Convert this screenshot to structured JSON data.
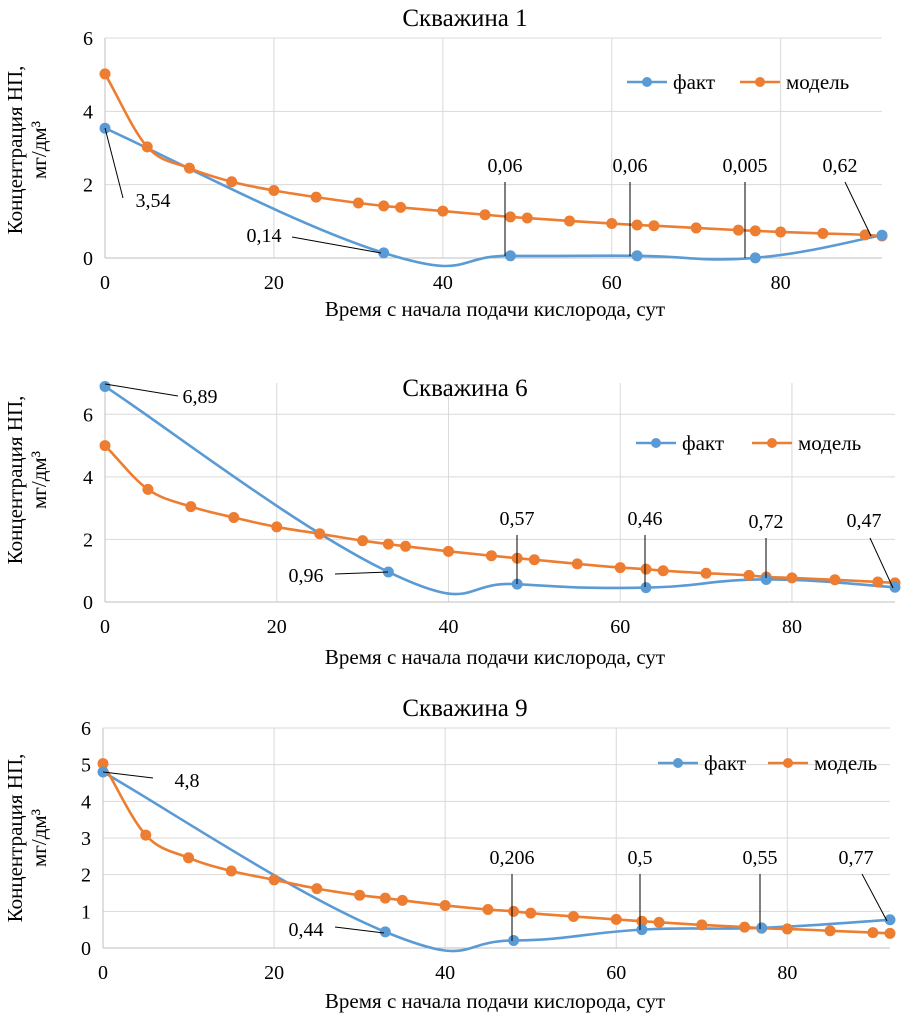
{
  "colors": {
    "fact": "#5b9bd5",
    "model": "#ed7d31",
    "grid": "#d9d9d9"
  },
  "chart_data": [
    {
      "type": "line",
      "title": "Скважина 1",
      "xlabel": "Время с начала подачи кислорода, сут",
      "ylabel_line1": "Концентрация НП,",
      "ylabel_line2": "мг/дм³",
      "xlim": [
        0,
        92
      ],
      "ylim": [
        0,
        6
      ],
      "xticks": [
        0,
        20,
        40,
        60,
        80
      ],
      "yticks": [
        0,
        2,
        4,
        6
      ],
      "grid": true,
      "legend_position": "top-right",
      "series": [
        {
          "name": "факт",
          "x": [
            0,
            33,
            48,
            63,
            77,
            92
          ],
          "y": [
            3.54,
            0.14,
            0.06,
            0.06,
            0.005,
            0.62
          ]
        },
        {
          "name": "модель",
          "x": [
            0,
            5,
            10,
            15,
            20,
            25,
            30,
            33,
            35,
            40,
            45,
            48,
            50,
            55,
            60,
            63,
            65,
            70,
            75,
            77,
            80,
            85,
            90,
            92
          ],
          "y": [
            5.02,
            3.03,
            2.45,
            2.08,
            1.84,
            1.66,
            1.5,
            1.42,
            1.38,
            1.28,
            1.18,
            1.12,
            1.09,
            1.01,
            0.94,
            0.9,
            0.88,
            0.82,
            0.76,
            0.74,
            0.71,
            0.67,
            0.63,
            0.6
          ]
        }
      ],
      "annotations": [
        {
          "text": "3,54",
          "x": 0,
          "y": 3.54
        },
        {
          "text": "0,14",
          "x": 33,
          "y": 0.14
        },
        {
          "text": "0,06",
          "x": 48,
          "y": 0.06
        },
        {
          "text": "0,06",
          "x": 63,
          "y": 0.06
        },
        {
          "text": "0,005",
          "x": 77,
          "y": 0.005
        },
        {
          "text": "0,62",
          "x": 92,
          "y": 0.62
        }
      ]
    },
    {
      "type": "line",
      "title": "Скважина 6",
      "xlabel": "Время с начала подачи кислорода, сут",
      "ylabel_line1": "Концентрация НП,",
      "ylabel_line2": "мг/дм³",
      "xlim": [
        0,
        92
      ],
      "ylim": [
        0,
        7
      ],
      "xticks": [
        0,
        20,
        40,
        60,
        80
      ],
      "yticks": [
        0,
        2,
        4,
        6
      ],
      "grid": true,
      "legend_position": "top-right",
      "series": [
        {
          "name": "факт",
          "x": [
            0,
            33,
            48,
            63,
            77,
            92
          ],
          "y": [
            6.89,
            0.96,
            0.57,
            0.46,
            0.72,
            0.47
          ]
        },
        {
          "name": "модель",
          "x": [
            0,
            5,
            10,
            15,
            20,
            25,
            30,
            33,
            35,
            40,
            45,
            48,
            50,
            55,
            60,
            63,
            65,
            70,
            75,
            77,
            80,
            85,
            90,
            92
          ],
          "y": [
            5.0,
            3.6,
            3.05,
            2.7,
            2.4,
            2.18,
            1.96,
            1.85,
            1.78,
            1.62,
            1.48,
            1.4,
            1.35,
            1.22,
            1.1,
            1.05,
            1.0,
            0.92,
            0.85,
            0.8,
            0.77,
            0.71,
            0.64,
            0.61
          ]
        }
      ],
      "annotations": [
        {
          "text": "6,89",
          "x": 0,
          "y": 6.89
        },
        {
          "text": "0,96",
          "x": 33,
          "y": 0.96
        },
        {
          "text": "0,57",
          "x": 48,
          "y": 0.57
        },
        {
          "text": "0,46",
          "x": 63,
          "y": 0.46
        },
        {
          "text": "0,72",
          "x": 77,
          "y": 0.72
        },
        {
          "text": "0,47",
          "x": 92,
          "y": 0.47
        }
      ]
    },
    {
      "type": "line",
      "title": "Скважина 9",
      "xlabel": "Время с начала подачи кислорода, сут",
      "ylabel_line1": "Концентрация НП,",
      "ylabel_line2": "мг/дм³",
      "xlim": [
        0,
        92
      ],
      "ylim": [
        0,
        6
      ],
      "xticks": [
        0,
        20,
        40,
        60,
        80
      ],
      "yticks": [
        0,
        1,
        2,
        3,
        4,
        5,
        6
      ],
      "grid": true,
      "legend_position": "top-right",
      "series": [
        {
          "name": "факт",
          "x": [
            0,
            33,
            48,
            63,
            77,
            92
          ],
          "y": [
            4.8,
            0.44,
            0.206,
            0.5,
            0.55,
            0.77
          ]
        },
        {
          "name": "модель",
          "x": [
            0,
            5,
            10,
            15,
            20,
            25,
            30,
            33,
            35,
            40,
            45,
            48,
            50,
            55,
            60,
            63,
            65,
            70,
            75,
            77,
            80,
            85,
            90,
            92
          ],
          "y": [
            5.03,
            3.08,
            2.46,
            2.1,
            1.86,
            1.62,
            1.44,
            1.36,
            1.3,
            1.16,
            1.05,
            1.0,
            0.95,
            0.86,
            0.78,
            0.73,
            0.7,
            0.63,
            0.57,
            0.54,
            0.52,
            0.47,
            0.42,
            0.4
          ]
        }
      ],
      "annotations": [
        {
          "text": "4,8",
          "x": 0,
          "y": 4.8
        },
        {
          "text": "0,44",
          "x": 33,
          "y": 0.44
        },
        {
          "text": "0,206",
          "x": 48,
          "y": 0.206
        },
        {
          "text": "0,5",
          "x": 63,
          "y": 0.5
        },
        {
          "text": "0,55",
          "x": 77,
          "y": 0.55
        },
        {
          "text": "0,77",
          "x": 92,
          "y": 0.77
        }
      ]
    }
  ]
}
